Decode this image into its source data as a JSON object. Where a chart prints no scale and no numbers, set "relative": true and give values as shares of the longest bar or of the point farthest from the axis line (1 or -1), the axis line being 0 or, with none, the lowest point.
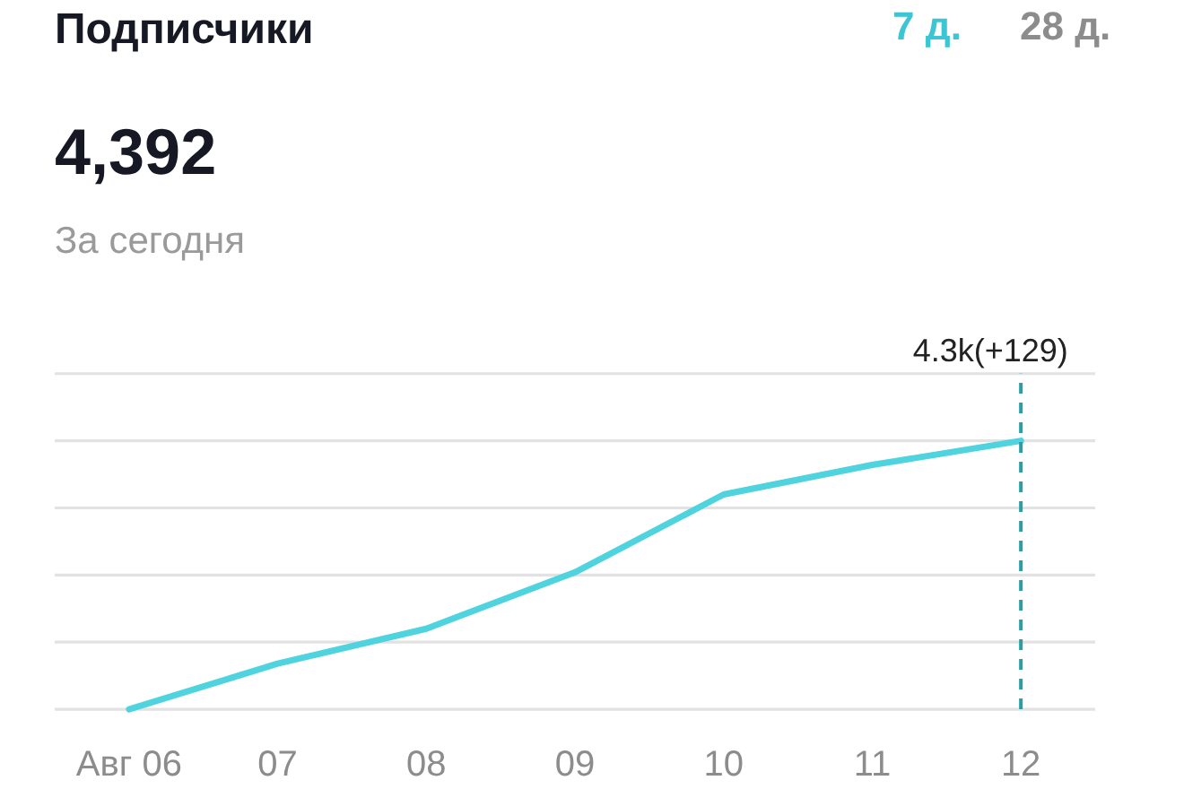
{
  "chart_data": {
    "type": "line",
    "title": "Подписчики",
    "annotations": [
      "7 д.",
      "28 д.",
      "4,392",
      "За сегодня"
    ],
    "categories": [
      "Авг 06",
      "07",
      "08",
      "09",
      "10",
      "11",
      "12"
    ],
    "relative": true,
    "series": [
      {
        "color": "#4fd3de",
        "values": [
          0,
          0.17,
          0.3,
          0.51,
          0.8,
          0.91,
          1
        ]
      }
    ],
    "ref_lines": [
      {
        "axis": "x",
        "value": "12",
        "label": "4.3k(+129)",
        "color": "#2b9ea3",
        "line_style": "dashed"
      }
    ],
    "grid": "y",
    "line_style": "solid"
  }
}
